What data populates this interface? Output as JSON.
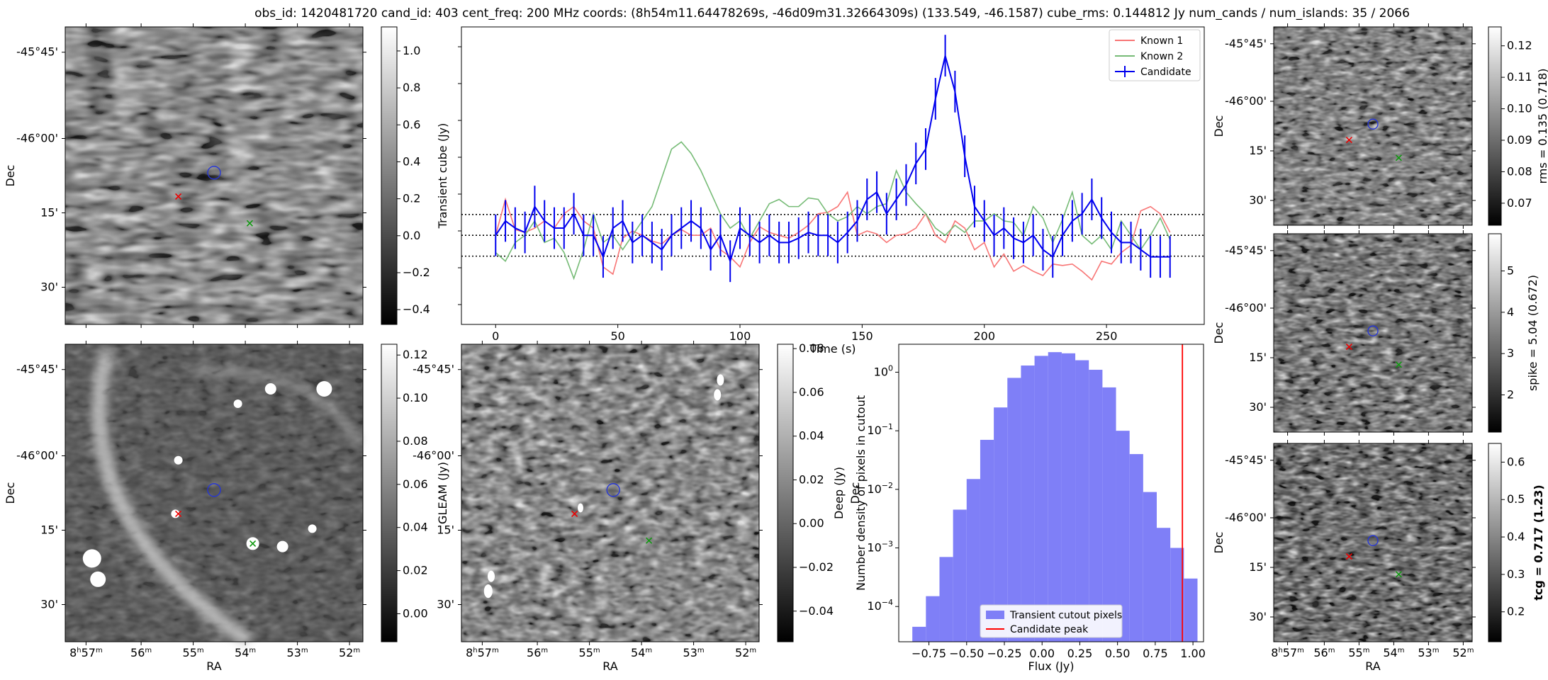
{
  "title": "obs_id: 1420481720 cand_id: 403 cent_freq: 200 MHz coords: (8h54m11.64478269s, -46d09m31.32664309s) (133.549, -46.1587) cube_rms: 0.144812 Jy num_cands / num_islands: 35 / 2066",
  "sky": {
    "ra_label": "RA",
    "dec_label": "Dec",
    "dec_ticks": [
      "-45°45'",
      "-46°00'",
      "15'",
      "30'"
    ],
    "ra_ticks": [
      {
        "main": "8",
        "sup1": "h",
        "mid": "57",
        "sup2": "m"
      },
      {
        "main": "56",
        "sup1": "m",
        "mid": "",
        "sup2": ""
      },
      {
        "main": "55",
        "sup1": "m",
        "mid": "",
        "sup2": ""
      },
      {
        "main": "54",
        "sup1": "m",
        "mid": "",
        "sup2": ""
      },
      {
        "main": "53",
        "sup1": "m",
        "mid": "",
        "sup2": ""
      },
      {
        "main": "52",
        "sup1": "m",
        "mid": "",
        "sup2": ""
      }
    ]
  },
  "colorbars": {
    "transient": {
      "label": "Transient cube (Jy)",
      "ticks": [
        "1.0",
        "0.8",
        "0.6",
        "0.4",
        "0.2",
        "0.0",
        "−0.2",
        "−0.4"
      ],
      "range": [
        -0.48,
        1.13
      ],
      "tick_values": [
        1.0,
        0.8,
        0.6,
        0.4,
        0.2,
        0.0,
        -0.2,
        -0.4
      ]
    },
    "gleam": {
      "label": "GLEAM (Jy)",
      "ticks": [
        "0.12",
        "0.10",
        "0.08",
        "0.06",
        "0.04",
        "0.02",
        "0.00"
      ],
      "range": [
        -0.013,
        0.125
      ],
      "tick_values": [
        0.12,
        0.1,
        0.08,
        0.06,
        0.04,
        0.02,
        0.0
      ]
    },
    "deep": {
      "label": "Deep (Jy)",
      "ticks": [
        "0.08",
        "0.06",
        "0.04",
        "0.02",
        "0.00",
        "−0.02",
        "−0.04"
      ],
      "range": [
        -0.054,
        0.082
      ],
      "tick_values": [
        0.08,
        0.06,
        0.04,
        0.02,
        0.0,
        -0.02,
        -0.04
      ]
    },
    "rms": {
      "label": "rms = 0.135 (0.718)",
      "ticks": [
        "0.12",
        "0.11",
        "0.10",
        "0.09",
        "0.08",
        "0.07"
      ],
      "range": [
        0.063,
        0.126
      ],
      "tick_values": [
        0.12,
        0.11,
        0.1,
        0.09,
        0.08,
        0.07
      ]
    },
    "spike": {
      "label": "spike = 5.04 (0.672)",
      "ticks": [
        "5",
        "4",
        "3",
        "2"
      ],
      "range": [
        1.1,
        5.9
      ],
      "tick_values": [
        5,
        4,
        3,
        2
      ]
    },
    "tcg": {
      "label": "tcg = 0.717 (1.23)",
      "ticks": [
        "0.6",
        "0.5",
        "0.4",
        "0.3",
        "0.2"
      ],
      "range": [
        0.12,
        0.65
      ],
      "tick_values": [
        0.6,
        0.5,
        0.4,
        0.3,
        0.2
      ]
    }
  },
  "colors": {
    "known1": "#f87575",
    "known2": "#76bb76",
    "candidate": "#0000ee",
    "peak": "#ff0000",
    "hist": "#7f7ff7"
  },
  "chart_data": [
    {
      "type": "line",
      "xlabel": "Time (s)",
      "ylabel": "",
      "xlim": [
        -14,
        290
      ],
      "ylim": [
        -0.62,
        1.45
      ],
      "x_ticks": [
        0,
        50,
        100,
        150,
        200,
        250
      ],
      "hlines": [
        -0.145,
        0.0,
        0.145
      ],
      "legend": [
        "Known 1",
        "Known 2",
        "Candidate"
      ],
      "legend_position": "top-right",
      "x": [
        0,
        4,
        8,
        12,
        16,
        20,
        24,
        28,
        32,
        36,
        40,
        44,
        48,
        52,
        56,
        60,
        64,
        68,
        72,
        76,
        80,
        84,
        88,
        92,
        96,
        100,
        104,
        108,
        112,
        116,
        120,
        124,
        128,
        132,
        136,
        140,
        144,
        148,
        152,
        156,
        160,
        164,
        168,
        172,
        176,
        180,
        184,
        188,
        192,
        196,
        200,
        204,
        208,
        212,
        216,
        220,
        224,
        228,
        232,
        236,
        240,
        244,
        248,
        252,
        256,
        260,
        264,
        268,
        272,
        276
      ],
      "series": [
        {
          "name": "Known 1",
          "values": [
            0.0,
            0.25,
            0.04,
            0.02,
            0.05,
            0.1,
            0.05,
            0.15,
            0.2,
            0.1,
            0.05,
            -0.22,
            -0.27,
            -0.02,
            0.03,
            0.0,
            -0.04,
            -0.06,
            0.0,
            0.04,
            0.0,
            0.0,
            0.05,
            -0.1,
            -0.15,
            -0.22,
            -0.05,
            0.06,
            0.02,
            0.0,
            -0.02,
            0.02,
            0.07,
            0.15,
            0.16,
            0.2,
            0.3,
            0.0,
            0.03,
            0.01,
            -0.05,
            0.0,
            0.01,
            0.05,
            0.15,
            0.0,
            -0.05,
            0.1,
            0.05,
            -0.1,
            -0.05,
            -0.22,
            -0.13,
            -0.25,
            -0.21,
            -0.25,
            -0.28,
            -0.2,
            -0.21,
            -0.2,
            -0.25,
            -0.31,
            -0.18,
            -0.2,
            -0.12,
            -0.07,
            0.17,
            0.2,
            0.15,
            0.02
          ]
        },
        {
          "name": "Known 2",
          "values": [
            -0.12,
            -0.18,
            -0.05,
            0.0,
            0.1,
            -0.05,
            -0.02,
            -0.12,
            -0.3,
            -0.1,
            0.15,
            -0.05,
            0.0,
            -0.1,
            0.0,
            0.1,
            0.2,
            0.4,
            0.6,
            0.65,
            0.57,
            0.45,
            0.3,
            0.15,
            0.05,
            0.1,
            -0.02,
            0.1,
            0.22,
            0.25,
            0.2,
            0.2,
            0.26,
            0.25,
            0.15,
            0.1,
            0.13,
            0.2,
            0.15,
            0.2,
            0.22,
            0.45,
            0.3,
            0.22,
            0.15,
            0.05,
            0.0,
            0.07,
            0.02,
            0.1,
            0.1,
            0.15,
            0.1,
            0.09,
            0.0,
            0.2,
            0.12,
            -0.05,
            0.11,
            0.3,
            0.0,
            -0.06,
            0.0,
            -0.1,
            0.1,
            0.0,
            -0.1,
            0.0,
            0.12,
            -0.03
          ]
        },
        {
          "name": "Candidate",
          "values": [
            0.0,
            0.1,
            0.05,
            0.02,
            0.2,
            0.1,
            0.05,
            0.05,
            0.15,
            0.0,
            0.0,
            -0.15,
            0.05,
            0.1,
            -0.05,
            0.0,
            -0.05,
            -0.1,
            0.0,
            0.05,
            0.1,
            0.05,
            -0.1,
            0.0,
            -0.18,
            0.05,
            0.0,
            -0.05,
            0.0,
            -0.05,
            -0.05,
            -0.02,
            0.02,
            0.0,
            0.0,
            -0.05,
            0.02,
            0.1,
            0.25,
            0.3,
            0.15,
            0.25,
            0.35,
            0.5,
            0.6,
            0.95,
            1.25,
            1.0,
            0.55,
            0.2,
            0.1,
            0.0,
            0.05,
            -0.02,
            -0.05,
            0.0,
            -0.1,
            -0.15,
            0.0,
            0.1,
            0.15,
            0.25,
            0.12,
            0.02,
            -0.05,
            -0.05,
            -0.1,
            -0.15,
            -0.15,
            -0.15
          ]
        }
      ],
      "candidate_error": 0.145
    },
    {
      "type": "bar",
      "xlabel": "Flux (Jy)",
      "ylabel": "Number density of pixels in cutout",
      "yscale": "log",
      "xlim": [
        -0.95,
        1.07
      ],
      "ylim": [
        2.5e-05,
        3
      ],
      "x_ticks": [
        "−0.75",
        "−0.50",
        "−0.25",
        "0.00",
        "0.25",
        "0.50",
        "0.75",
        "1.00"
      ],
      "x_tick_values": [
        -0.75,
        -0.5,
        -0.25,
        0.0,
        0.25,
        0.5,
        0.75,
        1.0
      ],
      "y_ticks": [
        {
          "base": "10",
          "exp": "0"
        },
        {
          "base": "10",
          "exp": "−1"
        },
        {
          "base": "10",
          "exp": "−2"
        },
        {
          "base": "10",
          "exp": "−3"
        },
        {
          "base": "10",
          "exp": "−4"
        }
      ],
      "y_tick_values": [
        1,
        0.1,
        0.01,
        0.001,
        0.0001
      ],
      "bin_edges": [
        -0.86,
        -0.77,
        -0.68,
        -0.59,
        -0.5,
        -0.41,
        -0.32,
        -0.23,
        -0.14,
        -0.05,
        0.04,
        0.13,
        0.22,
        0.31,
        0.4,
        0.49,
        0.58,
        0.67,
        0.76,
        0.85,
        0.94,
        1.03
      ],
      "values": [
        4.5e-05,
        0.00015,
        0.0007,
        0.0045,
        0.015,
        0.07,
        0.25,
        0.8,
        1.3,
        1.9,
        2.2,
        2.1,
        1.6,
        1.1,
        0.55,
        0.1,
        0.04,
        0.009,
        0.0022,
        0.001,
        0.0003
      ],
      "peak": 0.93,
      "legend": [
        "Transient cutout pixels",
        "Candidate peak"
      ],
      "legend_position": "lower-center"
    }
  ]
}
